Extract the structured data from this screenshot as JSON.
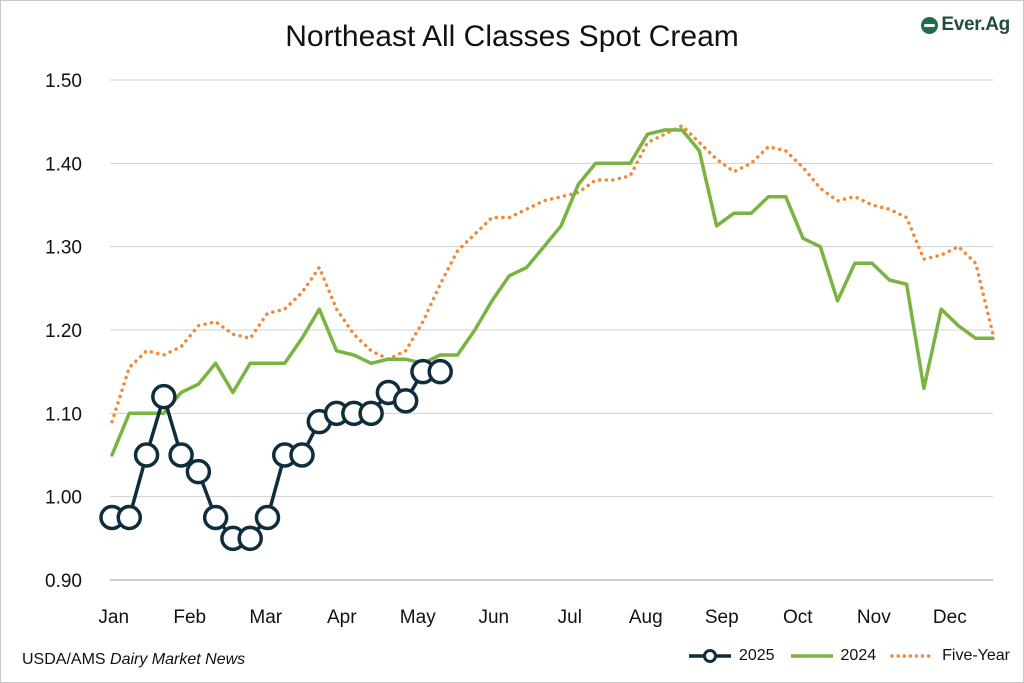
{
  "chart_data": {
    "type": "line",
    "title": "Northeast All Classes Spot Cream",
    "xlabel": "",
    "ylabel": "",
    "ylim": [
      0.9,
      1.5
    ],
    "y_ticks": [
      "0.90",
      "1.00",
      "1.10",
      "1.20",
      "1.30",
      "1.40",
      "1.50"
    ],
    "x_ticks": [
      "Jan",
      "Feb",
      "Mar",
      "Apr",
      "May",
      "Jun",
      "Jul",
      "Aug",
      "Sep",
      "Oct",
      "Nov",
      "Dec"
    ],
    "x_unit": "week of year",
    "grid": "horizontal",
    "legend_position": "bottom-right",
    "series": [
      {
        "name": "2025",
        "color": "#0f2d3c",
        "style": "solid-with-circle-markers",
        "x": [
          1,
          2,
          3,
          4,
          5,
          6,
          7,
          8,
          9,
          10,
          11,
          12,
          13,
          14,
          15,
          16,
          17,
          18,
          19,
          20
        ],
        "values": [
          0.975,
          0.975,
          1.05,
          1.12,
          1.05,
          1.03,
          0.975,
          0.95,
          0.95,
          0.975,
          1.05,
          1.05,
          1.09,
          1.1,
          1.1,
          1.1,
          1.125,
          1.115,
          1.15,
          1.15
        ]
      },
      {
        "name": "2024",
        "color": "#7bb342",
        "style": "solid",
        "x": [
          1,
          2,
          3,
          4,
          5,
          6,
          7,
          8,
          9,
          10,
          11,
          12,
          13,
          14,
          15,
          16,
          17,
          18,
          19,
          20,
          21,
          22,
          23,
          24,
          25,
          26,
          27,
          28,
          29,
          30,
          31,
          32,
          33,
          34,
          35,
          36,
          37,
          38,
          39,
          40,
          41,
          42,
          43,
          44,
          45,
          46,
          47,
          48,
          49,
          50,
          51,
          52
        ],
        "values": [
          1.05,
          1.1,
          1.1,
          1.1,
          1.125,
          1.135,
          1.16,
          1.125,
          1.16,
          1.16,
          1.16,
          1.19,
          1.225,
          1.175,
          1.17,
          1.16,
          1.165,
          1.165,
          1.16,
          1.17,
          1.17,
          1.2,
          1.235,
          1.265,
          1.275,
          1.3,
          1.325,
          1.375,
          1.4,
          1.4,
          1.4,
          1.435,
          1.44,
          1.44,
          1.415,
          1.325,
          1.34,
          1.34,
          1.36,
          1.36,
          1.31,
          1.3,
          1.235,
          1.28,
          1.28,
          1.26,
          1.255,
          1.13,
          1.225,
          1.205,
          1.19,
          1.19
        ]
      },
      {
        "name": "Five-Year",
        "color": "#ef8a3c",
        "style": "dotted",
        "x": [
          1,
          2,
          3,
          4,
          5,
          6,
          7,
          8,
          9,
          10,
          11,
          12,
          13,
          14,
          15,
          16,
          17,
          18,
          19,
          20,
          21,
          22,
          23,
          24,
          25,
          26,
          27,
          28,
          29,
          30,
          31,
          32,
          33,
          34,
          35,
          36,
          37,
          38,
          39,
          40,
          41,
          42,
          43,
          44,
          45,
          46,
          47,
          48,
          49,
          50,
          51,
          52
        ],
        "values": [
          1.09,
          1.155,
          1.175,
          1.17,
          1.18,
          1.205,
          1.21,
          1.195,
          1.19,
          1.22,
          1.225,
          1.245,
          1.275,
          1.225,
          1.195,
          1.175,
          1.165,
          1.175,
          1.21,
          1.255,
          1.295,
          1.315,
          1.335,
          1.335,
          1.345,
          1.355,
          1.36,
          1.365,
          1.38,
          1.38,
          1.385,
          1.425,
          1.435,
          1.445,
          1.425,
          1.405,
          1.39,
          1.4,
          1.42,
          1.415,
          1.395,
          1.37,
          1.355,
          1.36,
          1.35,
          1.345,
          1.335,
          1.285,
          1.29,
          1.3,
          1.28,
          1.195
        ]
      }
    ]
  },
  "logo": {
    "text": "Ever.Ag"
  },
  "source": {
    "prefix": "USDA/AMS ",
    "italic": "Dairy Market News"
  },
  "legend": [
    "2025",
    "2024",
    "Five-Year"
  ]
}
